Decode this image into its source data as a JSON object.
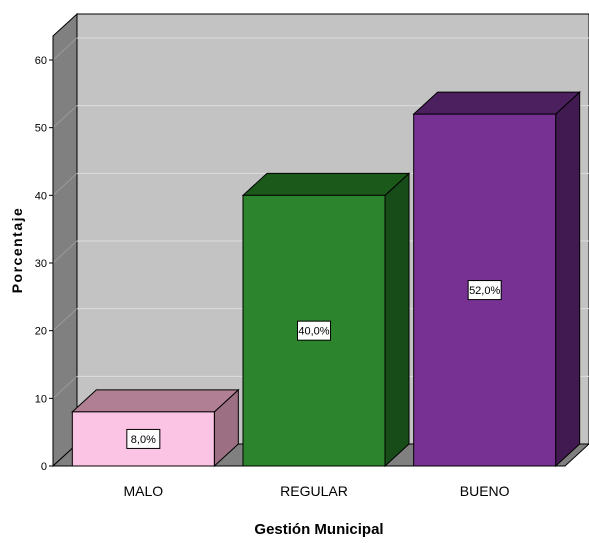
{
  "chart_data": {
    "type": "bar",
    "title": "",
    "xlabel": "Gestión Municipal",
    "ylabel": "Porcentaje",
    "categories": [
      "MALO",
      "REGULAR",
      "BUENO"
    ],
    "values": [
      8.0,
      40.0,
      52.0
    ],
    "data_labels": [
      "8,0%",
      "40,0%",
      "52,0%"
    ],
    "yticks": [
      "0",
      "10",
      "20",
      "30",
      "40",
      "50",
      "60"
    ],
    "ylim": [
      0,
      65
    ],
    "grid": true,
    "style": "3d",
    "colors": {
      "bars": [
        "#fcc4e4",
        "#2c852c",
        "#773193"
      ],
      "bar_tops": [
        "#b07f94",
        "#1b591b",
        "#4c1f5e"
      ],
      "bar_sides": [
        "#9c6f83",
        "#174b17",
        "#401a50"
      ],
      "wall": "#c3c3c3",
      "left_wall": "#808080",
      "floor": "#808080",
      "grid": "#dddddd"
    }
  }
}
